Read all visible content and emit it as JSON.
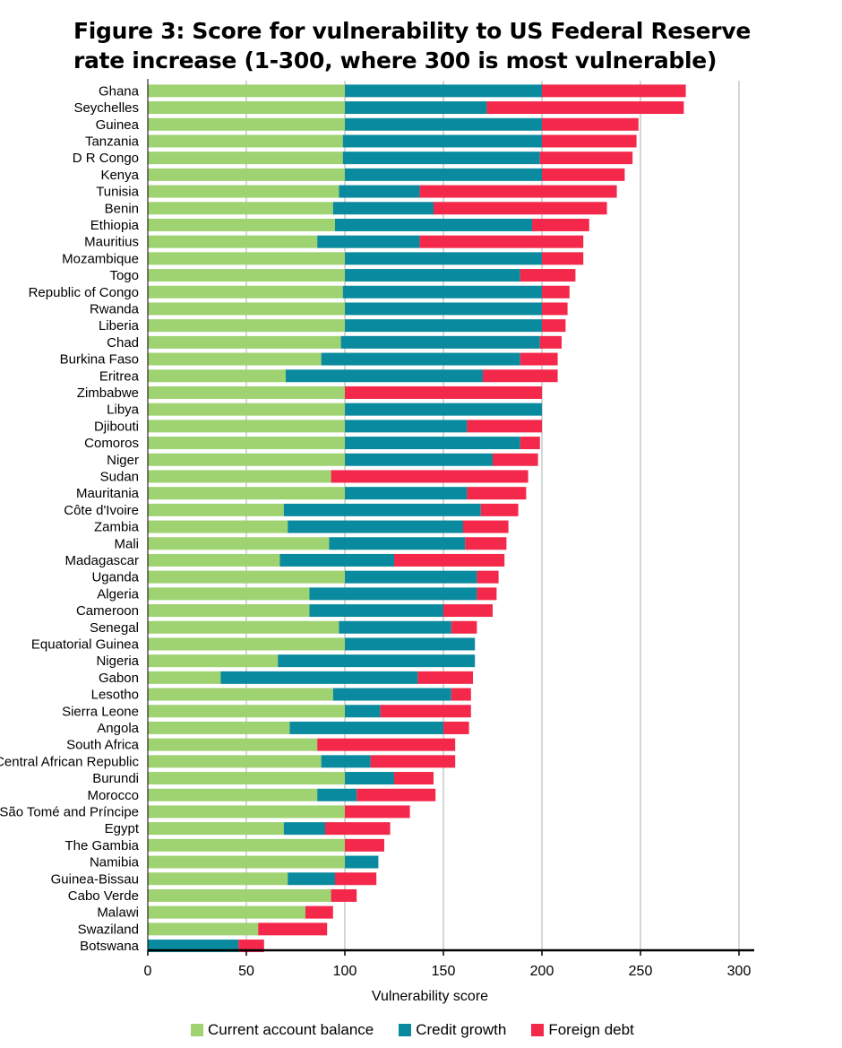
{
  "title_line1": "Figure 3: Score for vulnerability to US Federal Reserve",
  "title_line2": "rate increase (1-300, where 300 is most vulnerable)",
  "chart_data": {
    "type": "bar",
    "orientation": "horizontal",
    "stacked": true,
    "title": "Figure 3: Score for vulnerability to US Federal Reserve rate increase (1-300, where 300 is most vulnerable)",
    "xlabel": "Vulnerability score",
    "ylabel": "",
    "xlim": [
      0,
      300
    ],
    "xticks": [
      0,
      50,
      100,
      150,
      200,
      250,
      300
    ],
    "grid": "vertical",
    "legend_position": "bottom",
    "categories": [
      "Ghana",
      "Seychelles",
      "Guinea",
      "Tanzania",
      "D R Congo",
      "Kenya",
      "Tunisia",
      "Benin",
      "Ethiopia",
      "Mauritius",
      "Mozambique",
      "Togo",
      "Republic of Congo",
      "Rwanda",
      "Liberia",
      "Chad",
      "Burkina Faso",
      "Eritrea",
      "Zimbabwe",
      "Libya",
      "Djibouti",
      "Comoros",
      "Niger",
      "Sudan",
      "Mauritania",
      "Côte d'Ivoire",
      "Zambia",
      "Mali",
      "Madagascar",
      "Uganda",
      "Algeria",
      "Cameroon",
      "Senegal",
      "Equatorial Guinea",
      "Nigeria",
      "Gabon",
      "Lesotho",
      "Sierra Leone",
      "Angola",
      "South Africa",
      "Central African Republic",
      "Burundi",
      "Morocco",
      "São Tomé and Príncipe",
      "Egypt",
      "The Gambia",
      "Namibia",
      "Guinea-Bissau",
      "Cabo Verde",
      "Malawi",
      "Swaziland",
      "Botswana"
    ],
    "series": [
      {
        "name": "Current account balance",
        "color": "#9fd271",
        "values": [
          100,
          100,
          100,
          99,
          99,
          100,
          97,
          94,
          95,
          86,
          100,
          100,
          99,
          100,
          100,
          98,
          88,
          70,
          100,
          100,
          100,
          100,
          100,
          93,
          100,
          69,
          71,
          92,
          67,
          100,
          82,
          82,
          97,
          100,
          66,
          37,
          94,
          100,
          72,
          86,
          88,
          100,
          86,
          100,
          69,
          100,
          100,
          71,
          93,
          80,
          56,
          0
        ]
      },
      {
        "name": "Credit growth",
        "color": "#0a8a9e",
        "values": [
          100,
          72,
          100,
          101,
          100,
          100,
          41,
          51,
          100,
          52,
          100,
          89,
          101,
          100,
          100,
          101,
          101,
          100,
          0,
          100,
          62,
          89,
          75,
          0,
          62,
          100,
          89,
          69,
          58,
          67,
          85,
          68,
          57,
          66,
          100,
          100,
          60,
          18,
          78,
          0,
          25,
          25,
          20,
          0,
          21,
          0,
          17,
          24,
          0,
          0,
          0,
          46
        ]
      },
      {
        "name": "Foreign debt",
        "color": "#f4284a",
        "values": [
          73,
          100,
          49,
          48,
          47,
          42,
          100,
          88,
          29,
          83,
          21,
          28,
          14,
          13,
          12,
          11,
          19,
          38,
          100,
          0,
          38,
          10,
          23,
          100,
          30,
          19,
          23,
          21,
          56,
          11,
          10,
          25,
          13,
          0,
          0,
          28,
          10,
          46,
          13,
          70,
          43,
          20,
          40,
          33,
          33,
          20,
          0,
          21,
          13,
          14,
          35,
          13
        ]
      }
    ]
  }
}
